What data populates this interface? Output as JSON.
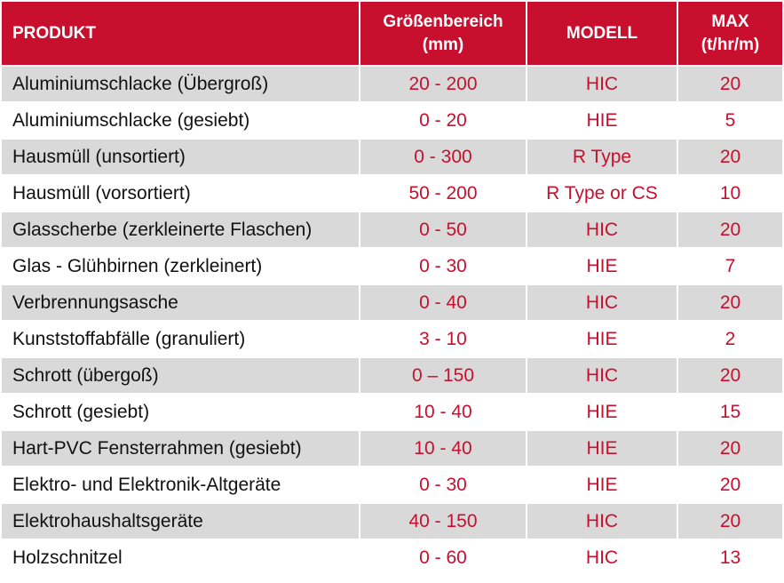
{
  "header": {
    "produkt": "PRODUKT",
    "groessen_line1": "Größenbereich",
    "groessen_line2": "(mm)",
    "modell": "MODELL",
    "max_line1": "MAX",
    "max_line2": "(t/hr/m)"
  },
  "colors": {
    "header_bg": "#c8102e",
    "accent_text": "#c8102e",
    "row_shade": "#d9d9d9"
  },
  "rows": [
    {
      "produkt": "Aluminiumschlacke (Übergroß)",
      "groesse": "20 - 200",
      "modell": "HIC",
      "max": "20"
    },
    {
      "produkt": "Aluminiumschlacke (gesiebt)",
      "groesse": "0 - 20",
      "modell": "HIE",
      "max": "5"
    },
    {
      "produkt": "Hausmüll (unsortiert)",
      "groesse": "0 - 300",
      "modell": "R Type",
      "max": "20"
    },
    {
      "produkt": "Hausmüll (vorsortiert)",
      "groesse": "50 - 200",
      "modell": "R Type or CS",
      "max": "10"
    },
    {
      "produkt": "Glasscherbe (zerkleinerte Flaschen)",
      "groesse": "0 - 50",
      "modell": "HIC",
      "max": "20"
    },
    {
      "produkt": "Glas - Glühbirnen (zerkleinert)",
      "groesse": "0 - 30",
      "modell": "HIE",
      "max": "7"
    },
    {
      "produkt": "Verbrennungsasche",
      "groesse": "0 - 40",
      "modell": "HIC",
      "max": "20"
    },
    {
      "produkt": "Kunststoffabfälle (granuliert)",
      "groesse": "3 - 10",
      "modell": "HIE",
      "max": "2"
    },
    {
      "produkt": "Schrott (übergoß)",
      "groesse": "0 – 150",
      "modell": "HIC",
      "max": "20"
    },
    {
      "produkt": "Schrott (gesiebt)",
      "groesse": "10 - 40",
      "modell": "HIE",
      "max": "15"
    },
    {
      "produkt": "Hart-PVC Fensterrahmen (gesiebt)",
      "groesse": "10 - 40",
      "modell": "HIE",
      "max": "20"
    },
    {
      "produkt": "Elektro- und Elektronik-Altgeräte",
      "groesse": "0 - 30",
      "modell": "HIE",
      "max": "20"
    },
    {
      "produkt": "Elektrohaushaltsgeräte",
      "groesse": "40 - 150",
      "modell": "HIC",
      "max": "20"
    },
    {
      "produkt": "Holzschnitzel",
      "groesse": "0 - 60",
      "modell": "HIC",
      "max": "13"
    }
  ]
}
